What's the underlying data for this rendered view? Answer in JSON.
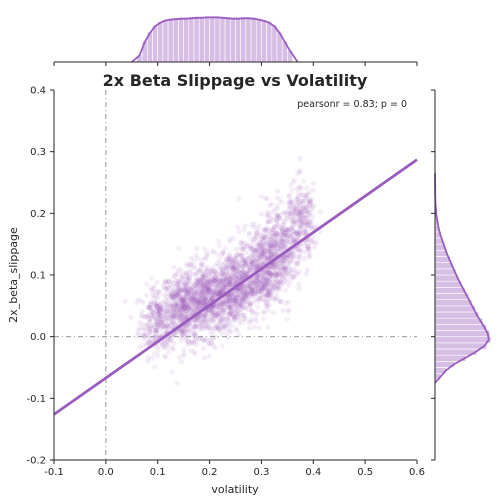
{
  "chart_data": {
    "type": "scatter",
    "title": "2x Beta Slippage vs Volatility",
    "xlabel": "volatility",
    "ylabel": "2x_beta_slippage",
    "xlim": [
      -0.1,
      0.6
    ],
    "ylim": [
      -0.2,
      0.4
    ],
    "xticks": [
      "-0.1",
      "0.0",
      "0.1",
      "0.2",
      "0.3",
      "0.4",
      "0.5",
      "0.6"
    ],
    "yticks": [
      "-0.2",
      "-0.1",
      "0.0",
      "0.1",
      "0.2",
      "0.3",
      "0.4"
    ],
    "annotation": "pearsonr = 0.83; p = 0",
    "reference_lines": {
      "x": 0.0,
      "y": 0.0
    },
    "regression": {
      "slope": 0.59,
      "intercept": -0.067
    },
    "scatter_cloud": [
      {
        "x": 0.1,
        "y": 0.025,
        "sx": 0.018,
        "sy": 0.028,
        "n": 260
      },
      {
        "x": 0.15,
        "y": 0.045,
        "sx": 0.022,
        "sy": 0.03,
        "n": 520
      },
      {
        "x": 0.2,
        "y": 0.06,
        "sx": 0.022,
        "sy": 0.03,
        "n": 560
      },
      {
        "x": 0.25,
        "y": 0.08,
        "sx": 0.022,
        "sy": 0.03,
        "n": 560
      },
      {
        "x": 0.3,
        "y": 0.11,
        "sx": 0.022,
        "sy": 0.032,
        "n": 520
      },
      {
        "x": 0.34,
        "y": 0.15,
        "sx": 0.02,
        "sy": 0.035,
        "n": 380
      },
      {
        "x": 0.38,
        "y": 0.19,
        "sx": 0.015,
        "sy": 0.03,
        "n": 200
      }
    ],
    "marginal_x": {
      "bin_edges_start": 0.06,
      "bin_width": 0.01,
      "density": [
        0.15,
        0.45,
        0.65,
        0.8,
        0.88,
        0.93,
        0.95,
        0.96,
        0.97,
        0.97,
        0.98,
        0.99,
        0.99,
        1.0,
        1.0,
        1.0,
        0.99,
        0.98,
        0.97,
        0.97,
        0.98,
        0.98,
        0.97,
        0.95,
        0.92,
        0.88,
        0.8,
        0.65,
        0.45,
        0.25
      ]
    },
    "marginal_y": {
      "bin_edges_start": -0.07,
      "bin_width": 0.01,
      "density": [
        0.1,
        0.2,
        0.35,
        0.55,
        0.75,
        0.92,
        1.0,
        0.98,
        0.92,
        0.85,
        0.78,
        0.72,
        0.66,
        0.6,
        0.54,
        0.48,
        0.42,
        0.37,
        0.32,
        0.27,
        0.22,
        0.18,
        0.14,
        0.1,
        0.07,
        0.05,
        0.03,
        0.02,
        0.01,
        0.005,
        0.003,
        0.002,
        0.001,
        0.001
      ]
    },
    "colors": {
      "series": "#9a5cbf",
      "axes": "#262626",
      "refline": "#888888"
    },
    "grid": false
  }
}
